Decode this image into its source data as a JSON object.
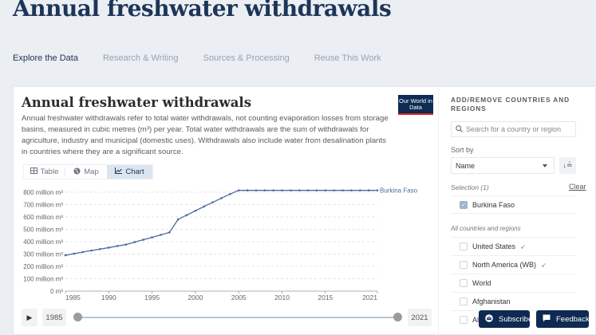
{
  "page": {
    "title": "Annual freshwater withdrawals",
    "tabs": [
      "Explore the Data",
      "Research & Writing",
      "Sources & Processing",
      "Reuse This Work"
    ],
    "active_tab": "Explore the Data"
  },
  "chart_panel": {
    "title": "Annual freshwater withdrawals",
    "subtitle": "Annual freshwater withdrawals refer to total water withdrawals, not counting evaporation losses from storage basins, measured in cubic metres (m³) per year. Total water withdrawals are the sum of withdrawals for agriculture, industry and municipal (domestic uses). Withdrawals also include water from desalination plants in countries where they are a significant source.",
    "logo_text": "Our World in Data",
    "view_tabs": [
      {
        "label": "Table",
        "icon": "table-icon"
      },
      {
        "label": "Map",
        "icon": "globe-icon"
      },
      {
        "label": "Chart",
        "icon": "line-chart-icon"
      }
    ],
    "active_view": "Chart",
    "timeline": {
      "play_icon": "▶",
      "start_year": "1985",
      "end_year": "2021",
      "start_fraction": 0,
      "end_fraction": 1
    }
  },
  "chart_data": {
    "type": "line",
    "title": "Annual freshwater withdrawals",
    "xlabel": "",
    "ylabel": "",
    "ylim": [
      0,
      800000000
    ],
    "xlim": [
      1985,
      2021
    ],
    "grid": true,
    "yticks": [
      {
        "value": 0,
        "label": "0 m³"
      },
      {
        "value": 100000000,
        "label": "100 million m³"
      },
      {
        "value": 200000000,
        "label": "200 million m³"
      },
      {
        "value": 300000000,
        "label": "300 million m³"
      },
      {
        "value": 400000000,
        "label": "400 million m³"
      },
      {
        "value": 500000000,
        "label": "500 million m³"
      },
      {
        "value": 600000000,
        "label": "600 million m³"
      },
      {
        "value": 700000000,
        "label": "700 million m³"
      },
      {
        "value": 800000000,
        "label": "800 million m³"
      }
    ],
    "xticks": [
      {
        "value": 1985,
        "label": "1985"
      },
      {
        "value": 1990,
        "label": "1990"
      },
      {
        "value": 1995,
        "label": "1995"
      },
      {
        "value": 2000,
        "label": "2000"
      },
      {
        "value": 2005,
        "label": "2005"
      },
      {
        "value": 2010,
        "label": "2010"
      },
      {
        "value": 2015,
        "label": "2015"
      },
      {
        "value": 2021,
        "label": "2021"
      }
    ],
    "x": [
      1985,
      1986,
      1987,
      1988,
      1989,
      1990,
      1991,
      1992,
      1993,
      1994,
      1995,
      1996,
      1997,
      1998,
      1999,
      2000,
      2001,
      2002,
      2003,
      2004,
      2005,
      2006,
      2007,
      2008,
      2009,
      2010,
      2011,
      2012,
      2013,
      2014,
      2015,
      2016,
      2017,
      2018,
      2019,
      2020,
      2021
    ],
    "series": [
      {
        "name": "Burkina Faso",
        "color": "#4c6a9c",
        "values": [
          290000000,
          303000000,
          316000000,
          328000000,
          340000000,
          352000000,
          365000000,
          377000000,
          397000000,
          416000000,
          435000000,
          455000000,
          475000000,
          580000000,
          615000000,
          650000000,
          685000000,
          718000000,
          752000000,
          785000000,
          815000000,
          815000000,
          815000000,
          815000000,
          815000000,
          815000000,
          815000000,
          815000000,
          815000000,
          815000000,
          815000000,
          815000000,
          815000000,
          815000000,
          815000000,
          815000000,
          815000000
        ]
      }
    ]
  },
  "sidebar": {
    "heading": "ADD/REMOVE COUNTRIES AND REGIONS",
    "search_placeholder": "Search for a country or region",
    "sort_label": "Sort by",
    "sort_value": "Name",
    "sort_order_icon": "↓≟",
    "selection_label": "Selection (1)",
    "clear_label": "Clear",
    "selected": [
      {
        "name": "Burkina Faso"
      }
    ],
    "all_label": "All countries and regions",
    "items": [
      {
        "name": "United States",
        "pinned": true
      },
      {
        "name": "North America (WB)",
        "pinned": true
      },
      {
        "name": "World",
        "pinned": false
      },
      {
        "name": "Afghanistan",
        "pinned": false
      },
      {
        "name": "Al",
        "pinned": false
      }
    ]
  },
  "floating": {
    "subscribe_label": "Subscribe",
    "feedback_label": "Feedback"
  },
  "colors": {
    "brand": "#0d2c54",
    "accent_red": "#ce261e",
    "line": "#4c6a9c"
  }
}
